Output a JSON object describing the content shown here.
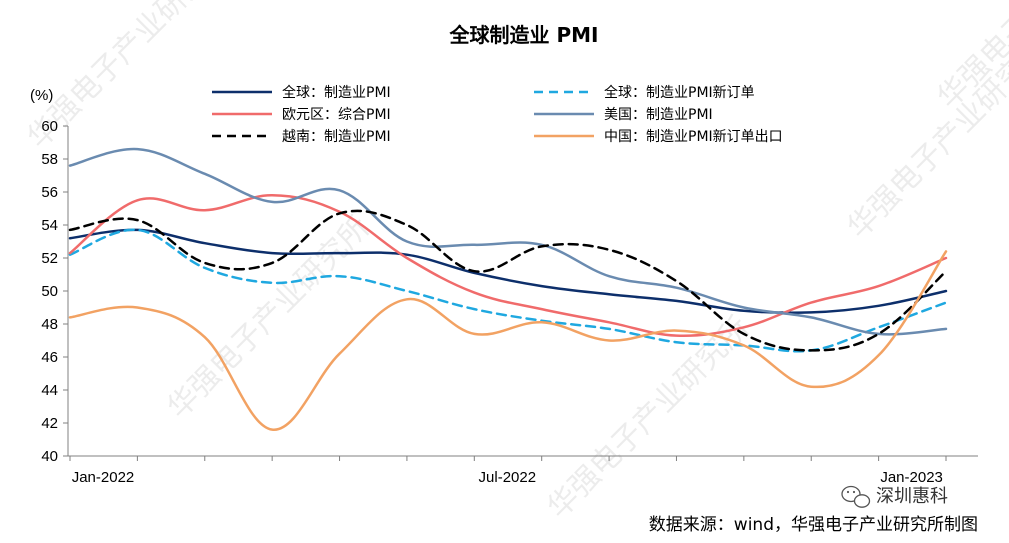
{
  "chart_data": {
    "type": "line",
    "title": "全球制造业 PMI",
    "ylabel": "(%)",
    "xlabel": "",
    "ylim": [
      40,
      60
    ],
    "yticks": [
      40,
      42,
      44,
      46,
      48,
      50,
      52,
      54,
      56,
      58,
      60
    ],
    "x": [
      "2022-01",
      "2022-02",
      "2022-03",
      "2022-04",
      "2022-05",
      "2022-06",
      "2022-07",
      "2022-08",
      "2022-09",
      "2022-10",
      "2022-11",
      "2022-12",
      "2023-01",
      "2023-02"
    ],
    "xticks": [
      {
        "label": "Jan-2022",
        "index": 0
      },
      {
        "label": "Jul-2022",
        "index": 6
      },
      {
        "label": "Jan-2023",
        "index": 12
      }
    ],
    "grid": false,
    "legend": "top",
    "series": [
      {
        "name": "全球：制造业PMI",
        "color": "#0d2f6b",
        "dash": "solid",
        "values": [
          53.2,
          53.7,
          52.9,
          52.3,
          52.3,
          52.2,
          51.1,
          50.3,
          49.8,
          49.4,
          48.8,
          48.7,
          49.1,
          50.0
        ]
      },
      {
        "name": "全球：制造业PMI新订单",
        "color": "#1fa8e0",
        "dash": "dashed",
        "values": [
          52.2,
          53.7,
          51.4,
          50.5,
          50.9,
          50.0,
          48.9,
          48.2,
          47.7,
          46.9,
          46.7,
          46.4,
          47.8,
          49.3
        ]
      },
      {
        "name": "欧元区：综合PMI",
        "color": "#f06b6b",
        "dash": "solid",
        "values": [
          52.3,
          55.5,
          54.9,
          55.8,
          54.8,
          52.0,
          49.9,
          48.9,
          48.1,
          47.3,
          47.8,
          49.3,
          50.3,
          52.0
        ]
      },
      {
        "name": "美国：制造业PMI",
        "color": "#6a8bb0",
        "dash": "solid",
        "values": [
          57.6,
          58.6,
          57.1,
          55.4,
          56.1,
          53.0,
          52.8,
          52.8,
          50.9,
          50.2,
          49.0,
          48.4,
          47.4,
          47.7
        ]
      },
      {
        "name": "越南：制造业PMI",
        "color": "#000000",
        "dash": "dashed",
        "values": [
          53.7,
          54.3,
          51.7,
          51.7,
          54.7,
          54.0,
          51.2,
          52.7,
          52.5,
          50.6,
          47.4,
          46.4,
          47.4,
          51.2
        ]
      },
      {
        "name": "中国：制造业PMI新订单出口",
        "color": "#f2a263",
        "dash": "solid",
        "values": [
          48.4,
          49.0,
          47.2,
          41.6,
          46.2,
          49.5,
          47.4,
          48.1,
          47.0,
          47.6,
          46.7,
          44.2,
          46.1,
          52.4
        ]
      }
    ],
    "source": "数据来源：wind，华强电子产业研究所制图"
  },
  "branding": {
    "channel_name": "深圳惠科",
    "watermark_text": "华强电子产业研究所"
  },
  "colors": {
    "axis": "#808080"
  }
}
